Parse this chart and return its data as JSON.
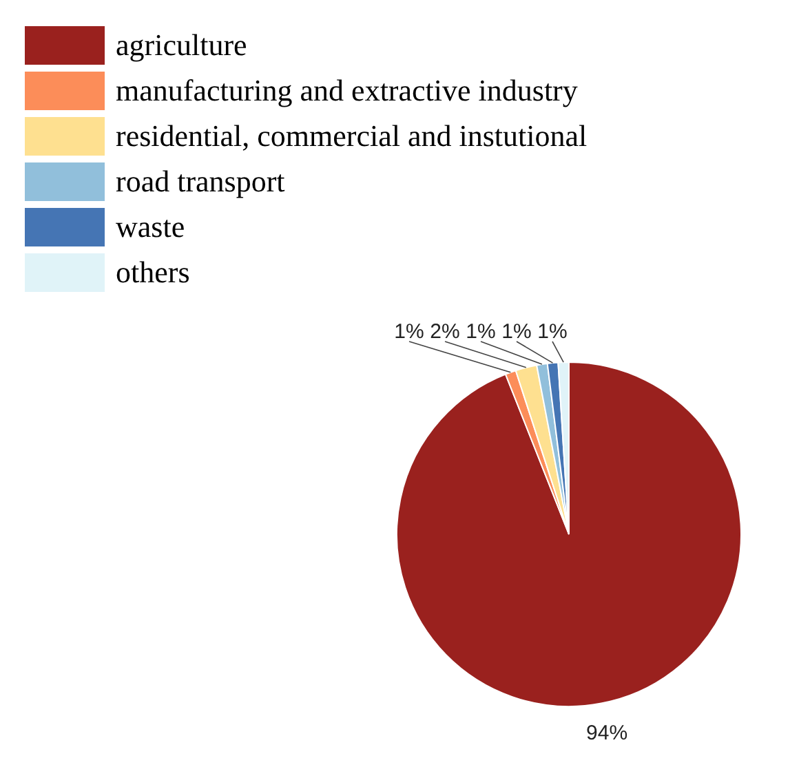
{
  "chart_data": {
    "type": "pie",
    "categories": [
      "agriculture",
      "manufacturing and extractive industry",
      "residential, commercial and instutional",
      "road transport",
      "waste",
      "others"
    ],
    "values": [
      94,
      1,
      2,
      1,
      1,
      1
    ],
    "colors": [
      "#9a211e",
      "#fc8d59",
      "#fee090",
      "#91bfdb",
      "#4575b4",
      "#e0f3f8"
    ],
    "value_labels": [
      "94%",
      "1%",
      "2%",
      "1%",
      "1%",
      "1%"
    ],
    "legend": "top left"
  }
}
